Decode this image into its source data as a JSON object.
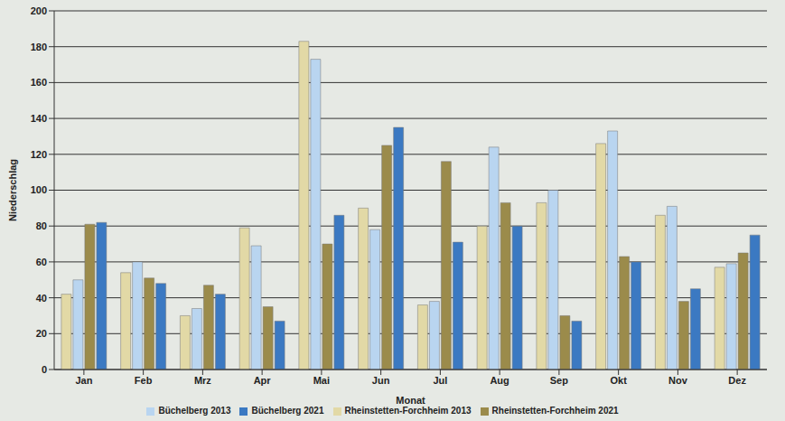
{
  "chart_data": {
    "type": "bar",
    "x_label": "Monat",
    "y_label": "Niederschlag",
    "categories": [
      "Jan",
      "Feb",
      "Mrz",
      "Apr",
      "Mai",
      "Jun",
      "Jul",
      "Aug",
      "Sep",
      "Okt",
      "Nov",
      "Dez"
    ],
    "series": [
      {
        "name": "Rheinstetten-Forchheim 2013",
        "color": "#e2d9a6",
        "values": [
          42,
          54,
          30,
          79,
          183,
          90,
          36,
          80,
          93,
          126,
          86,
          57
        ]
      },
      {
        "name": "Büchelberg 2013",
        "color": "#b9d5f0",
        "values": [
          50,
          60,
          34,
          69,
          173,
          78,
          38,
          124,
          100,
          133,
          91,
          59
        ]
      },
      {
        "name": "Rheinstetten-Forchheim 2021",
        "color": "#9b8b4b",
        "values": [
          81,
          51,
          47,
          35,
          70,
          125,
          116,
          93,
          30,
          63,
          38,
          65
        ]
      },
      {
        "name": "Büchelberg 2021",
        "color": "#3b79c2",
        "values": [
          82,
          48,
          42,
          27,
          86,
          135,
          71,
          80,
          27,
          60,
          45,
          75
        ]
      }
    ],
    "ylim": [
      0,
      200
    ],
    "yticks": [
      0,
      20,
      40,
      60,
      80,
      100,
      120,
      140,
      160,
      180,
      200
    ],
    "grid": true,
    "legend": "bottom"
  }
}
